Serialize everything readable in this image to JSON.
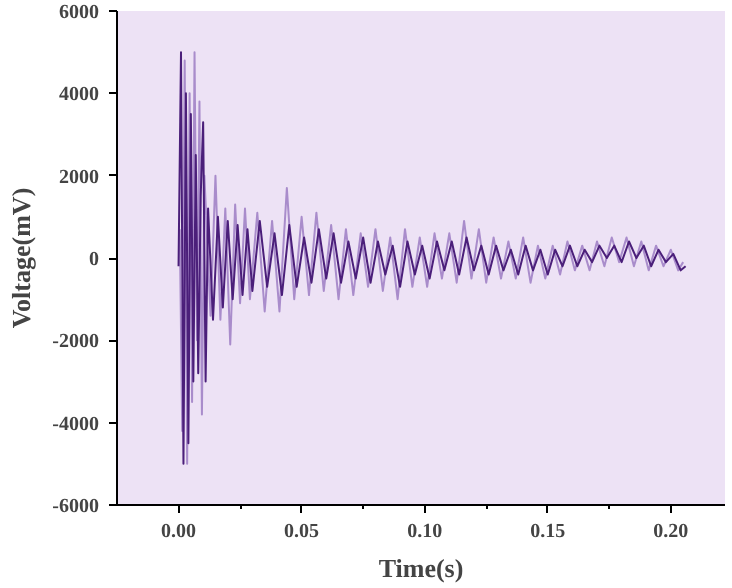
{
  "chart_data": {
    "type": "line",
    "xlabel": "Time(s)",
    "ylabel": "Voltage(mV)",
    "xlim": [
      -0.025,
      0.222
    ],
    "xticks": [
      {
        "value": 0,
        "label": "0.00"
      },
      {
        "value": 0.05,
        "label": "0.05"
      },
      {
        "value": 0.1,
        "label": "0.10"
      },
      {
        "value": 0.15,
        "label": "0.15"
      },
      {
        "value": 0.2,
        "label": "0.20"
      }
    ],
    "ylim": [
      -6000,
      6000
    ],
    "yticks": [
      -6000,
      -4000,
      -2000,
      0,
      2000,
      4000,
      6000
    ],
    "marker": "none",
    "line_style": "solid",
    "series": [
      {
        "color": "#a98ccb",
        "x": [
          0.0005,
          0.0015,
          0.0025,
          0.0035,
          0.0045,
          0.0055,
          0.0065,
          0.0075,
          0.0085,
          0.0095,
          0.0105,
          0.013,
          0.015,
          0.017,
          0.019,
          0.021,
          0.023,
          0.025,
          0.027,
          0.029,
          0.032,
          0.035,
          0.038,
          0.041,
          0.044,
          0.047,
          0.05,
          0.053,
          0.056,
          0.059,
          0.062,
          0.065,
          0.068,
          0.071,
          0.074,
          0.077,
          0.08,
          0.083,
          0.086,
          0.089,
          0.092,
          0.095,
          0.098,
          0.101,
          0.104,
          0.107,
          0.11,
          0.113,
          0.116,
          0.119,
          0.122,
          0.125,
          0.128,
          0.131,
          0.134,
          0.137,
          0.14,
          0.143,
          0.146,
          0.149,
          0.152,
          0.155,
          0.158,
          0.161,
          0.164,
          0.167,
          0.17,
          0.173,
          0.176,
          0.179,
          0.182,
          0.185,
          0.188,
          0.191,
          0.194,
          0.197,
          0.2,
          0.203,
          0.205
        ],
        "values": [
          700,
          -4200,
          4800,
          -5000,
          4000,
          -3500,
          5000,
          -2000,
          3800,
          -3800,
          2000,
          -1400,
          2000,
          -1500,
          1200,
          -2100,
          1300,
          -1100,
          1200,
          -1000,
          1100,
          -1300,
          900,
          -1300,
          1700,
          -1000,
          1000,
          -900,
          1100,
          -800,
          800,
          -1000,
          700,
          -900,
          600,
          -700,
          700,
          -800,
          500,
          -1000,
          700,
          -700,
          500,
          -700,
          600,
          -500,
          600,
          -600,
          900,
          -500,
          700,
          -600,
          500,
          -500,
          400,
          -500,
          500,
          -600,
          300,
          -500,
          300,
          -400,
          400,
          -300,
          300,
          -300,
          400,
          -200,
          500,
          -100,
          500,
          -200,
          400,
          -300,
          300,
          -200,
          200,
          -300,
          -100
        ]
      },
      {
        "color": "#4b1f7a",
        "x": [
          0.0,
          0.001,
          0.002,
          0.003,
          0.004,
          0.005,
          0.006,
          0.007,
          0.008,
          0.009,
          0.01,
          0.011,
          0.012,
          0.014,
          0.016,
          0.018,
          0.02,
          0.022,
          0.024,
          0.026,
          0.028,
          0.03,
          0.033,
          0.036,
          0.039,
          0.042,
          0.045,
          0.048,
          0.051,
          0.054,
          0.057,
          0.06,
          0.063,
          0.066,
          0.069,
          0.072,
          0.075,
          0.078,
          0.081,
          0.084,
          0.087,
          0.09,
          0.093,
          0.096,
          0.099,
          0.102,
          0.105,
          0.108,
          0.111,
          0.114,
          0.117,
          0.12,
          0.123,
          0.126,
          0.129,
          0.132,
          0.135,
          0.138,
          0.141,
          0.144,
          0.147,
          0.15,
          0.153,
          0.156,
          0.159,
          0.162,
          0.165,
          0.168,
          0.171,
          0.174,
          0.177,
          0.18,
          0.183,
          0.186,
          0.189,
          0.192,
          0.195,
          0.198,
          0.201,
          0.204,
          0.206
        ],
        "values": [
          -200,
          5000,
          -5000,
          4000,
          -4500,
          3500,
          -3000,
          2500,
          -2800,
          1500,
          3300,
          -3000,
          1200,
          -1500,
          1000,
          -1200,
          900,
          -1000,
          800,
          -900,
          700,
          -800,
          900,
          -700,
          600,
          -900,
          800,
          -700,
          500,
          -600,
          700,
          -500,
          600,
          -600,
          400,
          -500,
          500,
          -600,
          400,
          -400,
          300,
          -700,
          400,
          -400,
          300,
          -500,
          400,
          -300,
          400,
          -400,
          500,
          -300,
          300,
          -400,
          300,
          -300,
          200,
          -400,
          300,
          -300,
          200,
          -400,
          200,
          -200,
          300,
          -200,
          200,
          -100,
          300,
          0,
          300,
          -100,
          400,
          0,
          300,
          -200,
          200,
          -100,
          100,
          -300,
          -200
        ]
      }
    ]
  }
}
